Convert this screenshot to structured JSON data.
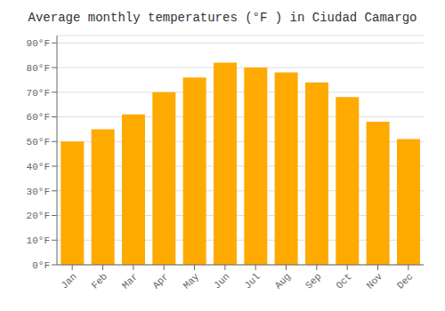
{
  "chart_data": {
    "type": "bar",
    "title": "Average monthly temperatures (°F ) in Ciudad Camargo",
    "categories": [
      "Jan",
      "Feb",
      "Mar",
      "Apr",
      "May",
      "Jun",
      "Jul",
      "Aug",
      "Sep",
      "Oct",
      "Nov",
      "Dec"
    ],
    "values": [
      50,
      55,
      61,
      70,
      76,
      82,
      80,
      78,
      74,
      68,
      58,
      51
    ],
    "color": "#FFAA00",
    "ylim": [
      0,
      93
    ],
    "yticks": [
      {
        "value": 0,
        "label": "0°F"
      },
      {
        "value": 10,
        "label": "10°F"
      },
      {
        "value": 20,
        "label": "20°F"
      },
      {
        "value": 30,
        "label": "30°F"
      },
      {
        "value": 40,
        "label": "40°F"
      },
      {
        "value": 50,
        "label": "50°F"
      },
      {
        "value": 60,
        "label": "60°F"
      },
      {
        "value": 70,
        "label": "70°F"
      },
      {
        "value": 80,
        "label": "80°F"
      },
      {
        "value": 90,
        "label": "90°F"
      }
    ],
    "grid": true
  }
}
